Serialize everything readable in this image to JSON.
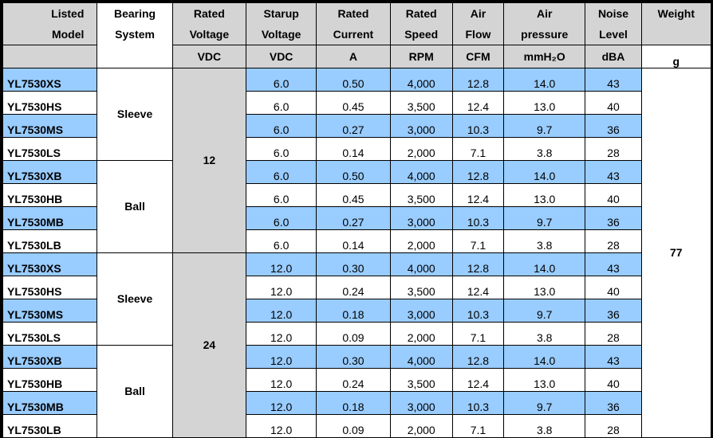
{
  "headers": {
    "model": [
      "Listed",
      "Model"
    ],
    "bearing": [
      "Bearing",
      "System"
    ],
    "rated_voltage": [
      "Rated",
      "Voltage"
    ],
    "startup_voltage": [
      "Starup",
      "Voltage"
    ],
    "rated_current": [
      "Rated",
      "Current"
    ],
    "rated_speed": [
      "Rated",
      "Speed"
    ],
    "air_flow": [
      "Air",
      "Flow"
    ],
    "air_pressure": [
      "Air",
      "pressure"
    ],
    "noise": [
      "Noise",
      "Level"
    ],
    "weight": [
      "Weight"
    ]
  },
  "units": {
    "rated_voltage": "VDC",
    "startup_voltage": "VDC",
    "rated_current": "A",
    "rated_speed": "RPM",
    "air_flow": "CFM",
    "air_pressure": "mmH₂O",
    "noise": "dBA",
    "weight": "g"
  },
  "groups": {
    "bearing": [
      "Sleeve",
      "Ball",
      "Sleeve",
      "Ball"
    ],
    "voltage": [
      "12",
      "24"
    ],
    "weight": "77"
  },
  "colors": {
    "blue_row": "#99ccff",
    "gray_cell": "#d4d4d4",
    "border": "#000000"
  },
  "rows": [
    {
      "model": "YL7530XS",
      "startup": "6.0",
      "current": "0.50",
      "speed": "4,000",
      "flow": "12.8",
      "pressure": "14.0",
      "noise": "43"
    },
    {
      "model": "YL7530HS",
      "startup": "6.0",
      "current": "0.45",
      "speed": "3,500",
      "flow": "12.4",
      "pressure": "13.0",
      "noise": "40"
    },
    {
      "model": "YL7530MS",
      "startup": "6.0",
      "current": "0.27",
      "speed": "3,000",
      "flow": "10.3",
      "pressure": "9.7",
      "noise": "36"
    },
    {
      "model": "YL7530LS",
      "startup": "6.0",
      "current": "0.14",
      "speed": "2,000",
      "flow": "7.1",
      "pressure": "3.8",
      "noise": "28"
    },
    {
      "model": "YL7530XB",
      "startup": "6.0",
      "current": "0.50",
      "speed": "4,000",
      "flow": "12.8",
      "pressure": "14.0",
      "noise": "43"
    },
    {
      "model": "YL7530HB",
      "startup": "6.0",
      "current": "0.45",
      "speed": "3,500",
      "flow": "12.4",
      "pressure": "13.0",
      "noise": "40"
    },
    {
      "model": "YL7530MB",
      "startup": "6.0",
      "current": "0.27",
      "speed": "3,000",
      "flow": "10.3",
      "pressure": "9.7",
      "noise": "36"
    },
    {
      "model": "YL7530LB",
      "startup": "6.0",
      "current": "0.14",
      "speed": "2,000",
      "flow": "7.1",
      "pressure": "3.8",
      "noise": "28"
    },
    {
      "model": "YL7530XS",
      "startup": "12.0",
      "current": "0.30",
      "speed": "4,000",
      "flow": "12.8",
      "pressure": "14.0",
      "noise": "43"
    },
    {
      "model": "YL7530HS",
      "startup": "12.0",
      "current": "0.24",
      "speed": "3,500",
      "flow": "12.4",
      "pressure": "13.0",
      "noise": "40"
    },
    {
      "model": "YL7530MS",
      "startup": "12.0",
      "current": "0.18",
      "speed": "3,000",
      "flow": "10.3",
      "pressure": "9.7",
      "noise": "36"
    },
    {
      "model": "YL7530LS",
      "startup": "12.0",
      "current": "0.09",
      "speed": "2,000",
      "flow": "7.1",
      "pressure": "3.8",
      "noise": "28"
    },
    {
      "model": "YL7530XB",
      "startup": "12.0",
      "current": "0.30",
      "speed": "4,000",
      "flow": "12.8",
      "pressure": "14.0",
      "noise": "43"
    },
    {
      "model": "YL7530HB",
      "startup": "12.0",
      "current": "0.24",
      "speed": "3,500",
      "flow": "12.4",
      "pressure": "13.0",
      "noise": "40"
    },
    {
      "model": "YL7530MB",
      "startup": "12.0",
      "current": "0.18",
      "speed": "3,000",
      "flow": "10.3",
      "pressure": "9.7",
      "noise": "36"
    },
    {
      "model": "YL7530LB",
      "startup": "12.0",
      "current": "0.09",
      "speed": "2,000",
      "flow": "7.1",
      "pressure": "3.8",
      "noise": "28"
    }
  ]
}
